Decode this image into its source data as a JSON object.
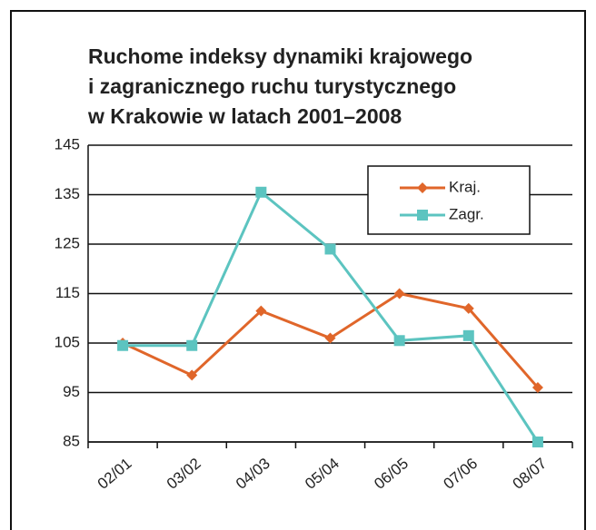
{
  "chart_data": {
    "type": "line",
    "title": [
      "Ruchome indeksy dynamiki krajowego",
      "i zagranicznego ruchu turystycznego",
      "w Krakowie w latach 2001–2008"
    ],
    "categories": [
      "02/01",
      "03/02",
      "04/03",
      "05/04",
      "06/05",
      "07/06",
      "08/07"
    ],
    "series": [
      {
        "name": "Kraj.",
        "color": "#e0662a",
        "marker": "diamond",
        "values": [
          105,
          98.5,
          111.5,
          106,
          115,
          112,
          96
        ]
      },
      {
        "name": "Zagr.",
        "color": "#5cc4c0",
        "marker": "square",
        "values": [
          104.5,
          104.5,
          135.5,
          124,
          105.5,
          106.5,
          85
        ]
      }
    ],
    "ylim": [
      85,
      145
    ],
    "yticks": [
      85,
      95,
      105,
      115,
      125,
      135,
      145
    ],
    "grid": true
  }
}
